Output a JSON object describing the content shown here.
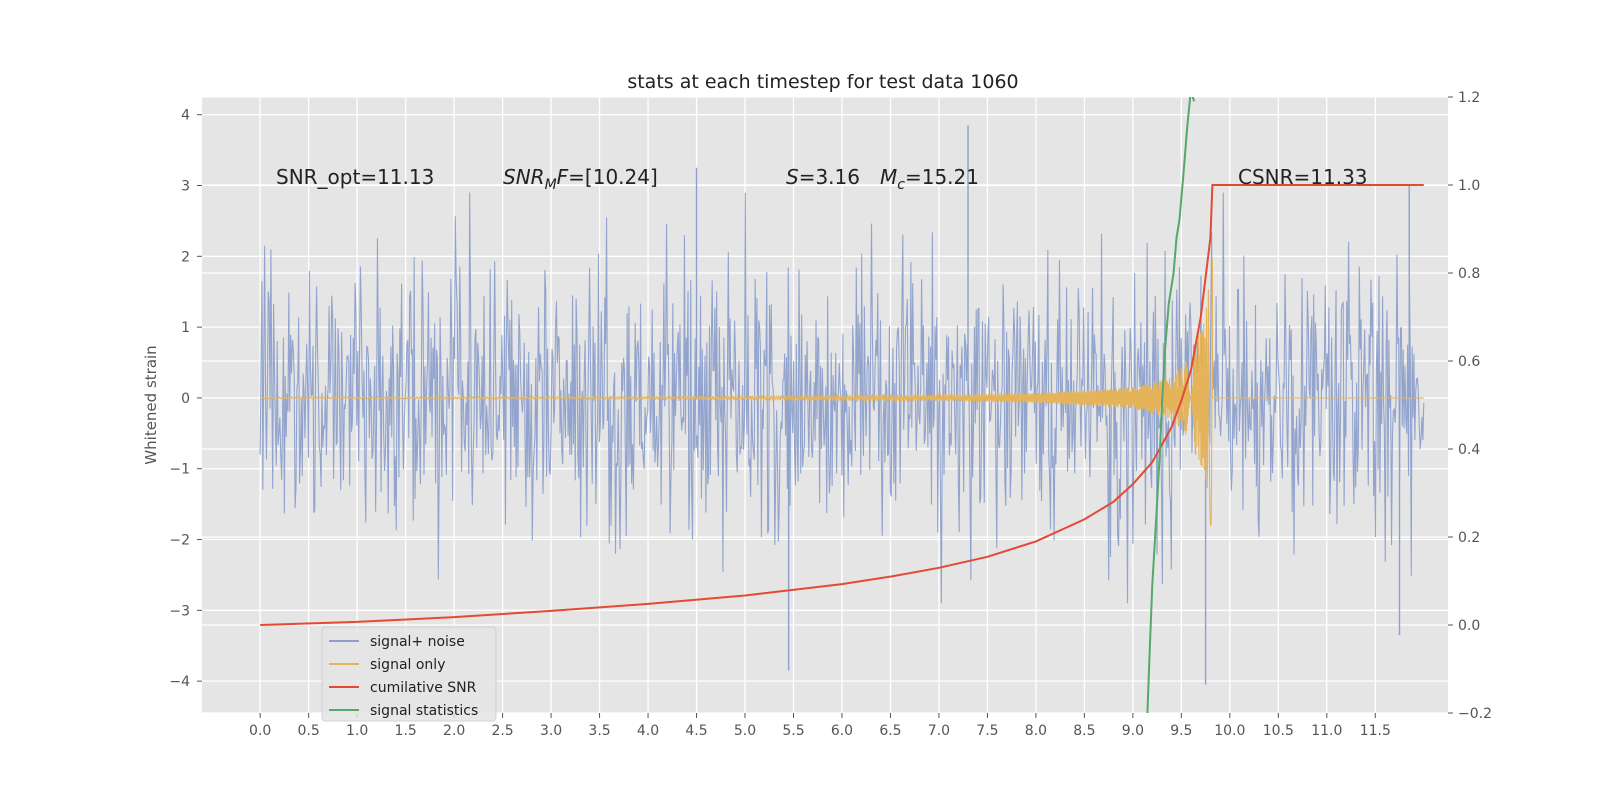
{
  "chart_data": {
    "type": "line",
    "title": "stats at each timestep for test data 1060",
    "xlabel": "",
    "ylabel": "Whitened strain",
    "y2label": "",
    "xlim": [
      -0.6,
      12.25
    ],
    "ylim": [
      -4.45,
      4.25
    ],
    "y2lim": [
      -0.2,
      1.2
    ],
    "xticks": [
      "0.0",
      "0.5",
      "1.0",
      "1.5",
      "2.0",
      "2.5",
      "3.0",
      "3.5",
      "4.0",
      "4.5",
      "5.0",
      "5.5",
      "6.0",
      "6.5",
      "7.0",
      "7.5",
      "8.0",
      "8.5",
      "9.0",
      "9.5",
      "10.0",
      "10.5",
      "11.0",
      "11.5"
    ],
    "yticks": [
      "4",
      "3",
      "2",
      "1",
      "0",
      "−1",
      "−2",
      "−3",
      "−4"
    ],
    "y2ticks": [
      "1.2",
      "1.0",
      "0.8",
      "0.6",
      "0.4",
      "0.2",
      "0.0",
      "−0.2"
    ],
    "grid": true,
    "legend_position": "lower-left",
    "annotations": {
      "snr_opt": "SNR_opt=11.13",
      "snr_mf": "SNR_MF=[10.24]",
      "s_mc": "S=3.16   M_c=15.21",
      "csnr": "CSNR=11.33"
    },
    "series": [
      {
        "name": "signal+ noise",
        "color": "#8da0cb",
        "axis": "left",
        "kind": "noise",
        "x_range": [
          0.0,
          12.0
        ],
        "samples": 1300,
        "approx_std": 0.95,
        "peak_high": [
          {
            "x": 4.5,
            "y": 3.25
          },
          {
            "x": 7.3,
            "y": 3.85
          },
          {
            "x": 11.85,
            "y": 3.0
          }
        ],
        "peak_low": [
          {
            "x": 5.45,
            "y": -3.85
          },
          {
            "x": 9.75,
            "y": -4.05
          },
          {
            "x": 11.75,
            "y": -3.35
          }
        ]
      },
      {
        "name": "signal only",
        "color": "#e5b45a",
        "axis": "left",
        "kind": "chirp",
        "x_range": [
          0.0,
          9.82
        ],
        "amplitude_points": [
          [
            0.0,
            0.01
          ],
          [
            4.0,
            0.015
          ],
          [
            7.0,
            0.04
          ],
          [
            8.0,
            0.07
          ],
          [
            9.0,
            0.15
          ],
          [
            9.4,
            0.3
          ],
          [
            9.6,
            0.6
          ],
          [
            9.75,
            1.2
          ],
          [
            9.82,
            2.0
          ]
        ]
      },
      {
        "name": "cumilative SNR",
        "color": "#e24a33",
        "axis": "right",
        "x": [
          0.0,
          1.0,
          2.0,
          3.0,
          4.0,
          5.0,
          6.0,
          6.5,
          7.0,
          7.5,
          8.0,
          8.5,
          8.8,
          9.0,
          9.2,
          9.4,
          9.5,
          9.6,
          9.7,
          9.8,
          9.82,
          12.0
        ],
        "y": [
          0.0,
          0.007,
          0.018,
          0.032,
          0.048,
          0.067,
          0.093,
          0.11,
          0.13,
          0.155,
          0.19,
          0.24,
          0.28,
          0.32,
          0.37,
          0.45,
          0.51,
          0.58,
          0.7,
          0.88,
          1.0,
          1.0
        ]
      },
      {
        "name": "signal statistics",
        "color": "#55a868",
        "axis": "right",
        "x": [
          9.15,
          9.17,
          9.2,
          9.24,
          9.28,
          9.3,
          9.33,
          9.37,
          9.42,
          9.45,
          9.48,
          9.52,
          9.56,
          9.6,
          9.63
        ],
        "y": [
          -0.2,
          -0.08,
          0.09,
          0.24,
          0.4,
          0.5,
          0.62,
          0.73,
          0.8,
          0.88,
          0.92,
          1.02,
          1.13,
          1.22,
          1.19
        ]
      }
    ]
  }
}
